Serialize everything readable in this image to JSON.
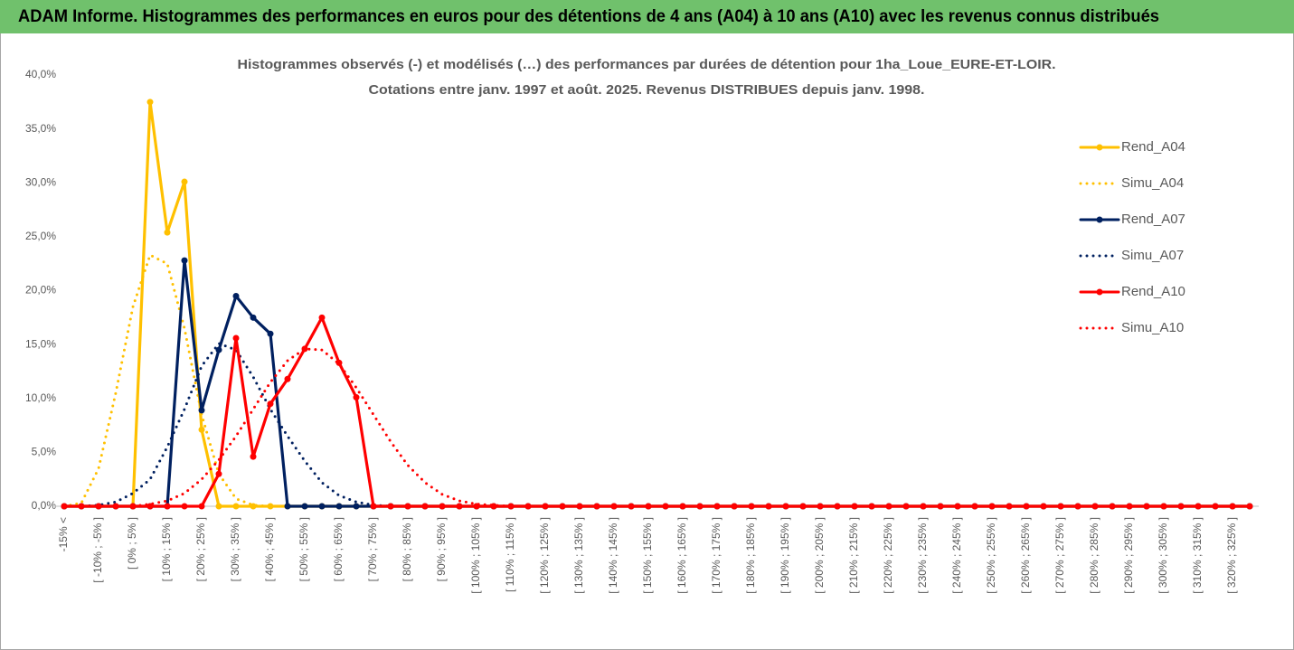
{
  "header_title": "ADAM Informe. Histogrammes des performances en euros pour des détentions de 4 ans (A04) à 10 ans (A10) avec les revenus connus distribués",
  "chart_data": {
    "type": "line",
    "title": "Histogrammes observés (-)  et modélisés (…) des performances par durées de détention pour 1ha_Loue_EURE-ET-LOIR.",
    "subtitle": "Cotations entre janv. 1997 et août. 2025. Revenus DISTRIBUES depuis janv. 1998.",
    "categories": [
      "-15% <",
      null,
      "[ -10% ; -5% ]",
      null,
      "[ 0% ; 5% ]",
      null,
      "[ 10% ; 15% ]",
      null,
      "[ 20% ; 25% ]",
      null,
      "[ 30% ; 35% ]",
      null,
      "[ 40% ; 45% ]",
      null,
      "[ 50% ; 55% ]",
      null,
      "[ 60% ; 65% ]",
      null,
      "[ 70% ; 75% ]",
      null,
      "[ 80% ; 85% ]",
      null,
      "[ 90% ; 95% ]",
      null,
      "[ 100% ; 105% ]",
      null,
      "[ 110% ; 115% ]",
      null,
      "[ 120% ; 125% ]",
      null,
      "[ 130% ; 135% ]",
      null,
      "[ 140% ; 145% ]",
      null,
      "[ 150% ; 155% ]",
      null,
      "[ 160% ; 165% ]",
      null,
      "[ 170% ; 175% ]",
      null,
      "[ 180% ; 185% ]",
      null,
      "[ 190% ; 195% ]",
      null,
      "[ 200% ; 205% ]",
      null,
      "[ 210% ; 215% ]",
      null,
      "[ 220% ; 225% ]",
      null,
      "[ 230% ; 235% ]",
      null,
      "[ 240% ; 245% ]",
      null,
      "[ 250% ; 255% ]",
      null,
      "[ 260% ; 265% ]",
      null,
      "[ 270% ; 275% ]",
      null,
      "[ 280% ; 285% ]",
      null,
      "[ 290% ; 295% ]",
      null,
      "[ 300% ; 305% ]",
      null,
      "[ 310% ; 315% ]",
      null,
      "[ 320% ; 325% ]",
      null
    ],
    "series": [
      {
        "name": "Rend_A04",
        "color": "#ffc000",
        "line_style": "solid",
        "markers": true,
        "values": [
          0,
          0,
          0,
          0,
          0,
          37.5,
          25.4,
          30.1,
          7.1,
          0,
          0,
          0,
          0,
          0,
          0,
          0,
          0,
          0,
          0,
          0,
          0,
          0,
          0,
          0,
          0,
          0,
          0,
          0,
          0,
          0,
          0,
          0,
          0,
          0,
          0,
          0,
          0,
          0,
          0,
          0,
          0,
          0,
          0,
          0,
          0,
          0,
          0,
          0,
          0,
          0,
          0,
          0,
          0,
          0,
          0,
          0,
          0,
          0,
          0,
          0,
          0,
          0,
          0,
          0,
          0,
          0,
          0,
          0,
          0,
          0
        ]
      },
      {
        "name": "Simu_A04",
        "color": "#ffc000",
        "line_style": "dotted",
        "markers": false,
        "values": [
          0,
          0.3,
          3.5,
          10.5,
          18.5,
          23.3,
          22.5,
          16.5,
          8.5,
          3.0,
          0.7,
          0.1,
          0,
          0,
          0,
          0,
          0,
          0,
          0,
          0,
          0,
          0,
          0,
          0,
          0,
          0,
          0,
          0,
          0,
          0,
          0,
          0,
          0,
          0,
          0,
          0,
          0,
          0,
          0,
          0,
          0,
          0,
          0,
          0,
          0,
          0,
          0,
          0,
          0,
          0,
          0,
          0,
          0,
          0,
          0,
          0,
          0,
          0,
          0,
          0,
          0,
          0,
          0,
          0,
          0,
          0,
          0,
          0,
          0,
          0
        ]
      },
      {
        "name": "Rend_A07",
        "color": "#002060",
        "line_style": "solid",
        "markers": true,
        "values": [
          0,
          0,
          0,
          0,
          0,
          0,
          0,
          22.8,
          8.9,
          14.5,
          19.5,
          17.5,
          16.0,
          0,
          0,
          0,
          0,
          0,
          0,
          0,
          0,
          0,
          0,
          0,
          0,
          0,
          0,
          0,
          0,
          0,
          0,
          0,
          0,
          0,
          0,
          0,
          0,
          0,
          0,
          0,
          0,
          0,
          0,
          0,
          0,
          0,
          0,
          0,
          0,
          0,
          0,
          0,
          0,
          0,
          0,
          0,
          0,
          0,
          0,
          0,
          0,
          0,
          0,
          0,
          0,
          0,
          0,
          0,
          0,
          0
        ]
      },
      {
        "name": "Simu_A07",
        "color": "#002060",
        "line_style": "dotted",
        "markers": false,
        "values": [
          0,
          0,
          0.1,
          0.4,
          1.2,
          2.5,
          5.5,
          9,
          13,
          15.1,
          14.5,
          12,
          9,
          6.5,
          4.2,
          2.2,
          1.0,
          0.4,
          0.1,
          0,
          0,
          0,
          0,
          0,
          0,
          0,
          0,
          0,
          0,
          0,
          0,
          0,
          0,
          0,
          0,
          0,
          0,
          0,
          0,
          0,
          0,
          0,
          0,
          0,
          0,
          0,
          0,
          0,
          0,
          0,
          0,
          0,
          0,
          0,
          0,
          0,
          0,
          0,
          0,
          0,
          0,
          0,
          0,
          0,
          0,
          0,
          0,
          0,
          0,
          0
        ]
      },
      {
        "name": "Rend_A10",
        "color": "#ff0000",
        "line_style": "solid",
        "markers": true,
        "values": [
          0,
          0,
          0,
          0,
          0,
          0,
          0,
          0,
          0,
          3.0,
          15.6,
          4.6,
          9.5,
          11.8,
          14.6,
          17.5,
          13.3,
          10.1,
          0,
          0,
          0,
          0,
          0,
          0,
          0,
          0,
          0,
          0,
          0,
          0,
          0,
          0,
          0,
          0,
          0,
          0,
          0,
          0,
          0,
          0,
          0,
          0,
          0,
          0,
          0,
          0,
          0,
          0,
          0,
          0,
          0,
          0,
          0,
          0,
          0,
          0,
          0,
          0,
          0,
          0,
          0,
          0,
          0,
          0,
          0,
          0,
          0,
          0,
          0,
          0
        ]
      },
      {
        "name": "Simu_A10",
        "color": "#ff0000",
        "line_style": "dotted",
        "markers": false,
        "values": [
          0,
          0,
          0,
          0,
          0,
          0.2,
          0.5,
          1.2,
          2.5,
          4.3,
          6.5,
          9.0,
          11.5,
          13.5,
          14.6,
          14.5,
          13.2,
          11.0,
          8.5,
          6.0,
          3.8,
          2.2,
          1.1,
          0.5,
          0.2,
          0.1,
          0,
          0,
          0,
          0,
          0,
          0,
          0,
          0,
          0,
          0,
          0,
          0,
          0,
          0,
          0,
          0,
          0,
          0,
          0,
          0,
          0,
          0,
          0,
          0,
          0,
          0,
          0,
          0,
          0,
          0,
          0,
          0,
          0,
          0,
          0,
          0,
          0,
          0,
          0,
          0,
          0,
          0,
          0,
          0
        ]
      }
    ],
    "ylim": [
      0,
      40
    ],
    "yticks": [
      {
        "value": 0,
        "label": "0,0%"
      },
      {
        "value": 5,
        "label": "5,0%"
      },
      {
        "value": 10,
        "label": "10,0%"
      },
      {
        "value": 15,
        "label": "15,0%"
      },
      {
        "value": 20,
        "label": "20,0%"
      },
      {
        "value": 25,
        "label": "25,0%"
      },
      {
        "value": 30,
        "label": "30,0%"
      },
      {
        "value": 35,
        "label": "35,0%"
      },
      {
        "value": 40,
        "label": "40,0%"
      }
    ],
    "grid": false,
    "legend": "right"
  }
}
